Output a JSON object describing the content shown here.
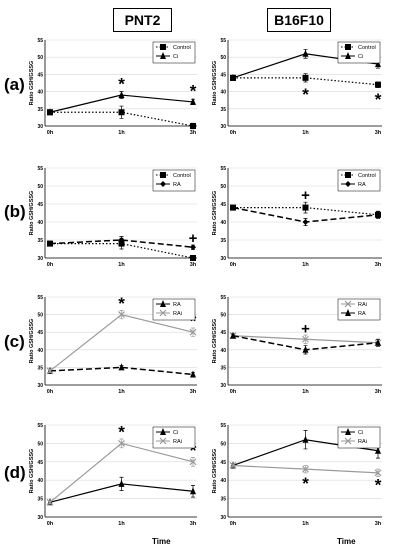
{
  "columns": [
    "PNT2",
    "B16F10"
  ],
  "rows": [
    "(a)",
    "(b)",
    "(c)",
    "(d)"
  ],
  "footer": {
    "time_label": "Time",
    "time_label2": "Time"
  },
  "colors": {
    "black": "#000000",
    "gray": "#9a9a9a"
  },
  "chart_data": [
    {
      "id": "a-left",
      "type": "line",
      "ylabel": "Ratio GSH/GSSG",
      "ylim": [
        30,
        55
      ],
      "yticks": [
        30,
        35,
        40,
        45,
        50,
        55
      ],
      "categories": [
        "0h",
        "1h",
        "3h"
      ],
      "legend": "top-right",
      "series": [
        {
          "name": "Control",
          "values": [
            34,
            34,
            30
          ],
          "errors": [
            0.7,
            1.8,
            0.8
          ],
          "style": "dotted",
          "marker": "square",
          "color": "#000000"
        },
        {
          "name": "Ci",
          "values": [
            34,
            39,
            37
          ],
          "errors": [
            0.7,
            1.0,
            0.8
          ],
          "style": "solid",
          "marker": "triangle",
          "color": "#000000"
        }
      ],
      "annotations": [
        {
          "x": "1h",
          "y": 42,
          "text": "*"
        },
        {
          "x": "3h",
          "y": 40,
          "text": "*"
        }
      ]
    },
    {
      "id": "a-right",
      "type": "line",
      "ylabel": "Ratio GSH/GSSG",
      "ylim": [
        30,
        55
      ],
      "yticks": [
        30,
        35,
        40,
        45,
        50,
        55
      ],
      "categories": [
        "0h",
        "1h",
        "3h"
      ],
      "legend": "top-right",
      "series": [
        {
          "name": "Control",
          "values": [
            44,
            44,
            42
          ],
          "errors": [
            0.6,
            1.2,
            0.8
          ],
          "style": "dotted",
          "marker": "square",
          "color": "#000000"
        },
        {
          "name": "Ci",
          "values": [
            44,
            51,
            48
          ],
          "errors": [
            0.6,
            1.3,
            1.2
          ],
          "style": "solid",
          "marker": "triangle",
          "color": "#000000"
        }
      ],
      "annotations": [
        {
          "x": "1h",
          "y": 39,
          "text": "*"
        },
        {
          "x": "3h",
          "y": 37.5,
          "text": "*"
        }
      ]
    },
    {
      "id": "b-left",
      "type": "line",
      "ylabel": "Ratio GSH/GSSG",
      "ylim": [
        30,
        55
      ],
      "yticks": [
        30,
        35,
        40,
        45,
        50,
        55
      ],
      "categories": [
        "0h",
        "1h",
        "3h"
      ],
      "legend": "top-right",
      "series": [
        {
          "name": "Control",
          "values": [
            34,
            34,
            30
          ],
          "errors": [
            0.5,
            1.5,
            0.6
          ],
          "style": "dotted",
          "marker": "square",
          "color": "#000000"
        },
        {
          "name": "RA",
          "values": [
            34,
            35,
            33
          ],
          "errors": [
            0.5,
            1.0,
            0.6
          ],
          "style": "dashed",
          "marker": "diamond",
          "color": "#000000"
        }
      ],
      "annotations": [
        {
          "x": "3h",
          "y": 35.5,
          "text": "+"
        }
      ]
    },
    {
      "id": "b-right",
      "type": "line",
      "ylabel": "Ratio GSH/GSSG",
      "ylim": [
        30,
        55
      ],
      "yticks": [
        30,
        35,
        40,
        45,
        50,
        55
      ],
      "categories": [
        "0h",
        "1h",
        "3h"
      ],
      "legend": "top-right",
      "series": [
        {
          "name": "Control",
          "values": [
            44,
            44,
            42
          ],
          "errors": [
            0.6,
            1.5,
            1.0
          ],
          "style": "dotted",
          "marker": "square",
          "color": "#000000"
        },
        {
          "name": "RA",
          "values": [
            44,
            40,
            42
          ],
          "errors": [
            0.6,
            1.0,
            0.8
          ],
          "style": "dashed",
          "marker": "diamond",
          "color": "#000000"
        }
      ],
      "annotations": [
        {
          "x": "1h",
          "y": 47.5,
          "text": "+"
        }
      ]
    },
    {
      "id": "c-left",
      "type": "line",
      "ylabel": "Ratio GSH/GSSG",
      "ylim": [
        30,
        55
      ],
      "yticks": [
        30,
        35,
        40,
        45,
        50,
        55
      ],
      "categories": [
        "0h",
        "1h",
        "3h"
      ],
      "legend": "top-right",
      "series": [
        {
          "name": "RA",
          "values": [
            34,
            35,
            33
          ],
          "errors": [
            0.5,
            0.6,
            0.6
          ],
          "style": "dashed",
          "marker": "triangle",
          "color": "#000000"
        },
        {
          "name": "RAi",
          "values": [
            34,
            50,
            45
          ],
          "errors": [
            0.5,
            1.2,
            1.2
          ],
          "style": "solid",
          "marker": "x",
          "color": "#9a9a9a"
        }
      ],
      "annotations": [
        {
          "x": "1h",
          "y": 53,
          "text": "*"
        },
        {
          "x": "3h",
          "y": 48,
          "text": "*"
        }
      ]
    },
    {
      "id": "c-right",
      "type": "line",
      "ylabel": "Ratio GSH/GSSG",
      "ylim": [
        30,
        55
      ],
      "yticks": [
        30,
        35,
        40,
        45,
        50,
        55
      ],
      "categories": [
        "0h",
        "1h",
        "3h"
      ],
      "legend": "top-right",
      "series": [
        {
          "name": "RAi",
          "values": [
            44,
            43,
            42
          ],
          "errors": [
            0.5,
            1.2,
            1.0
          ],
          "style": "solid",
          "marker": "x",
          "color": "#9a9a9a"
        },
        {
          "name": "RA",
          "values": [
            44,
            40,
            42
          ],
          "errors": [
            0.5,
            1.2,
            1.0
          ],
          "style": "dashed",
          "marker": "triangle",
          "color": "#000000"
        }
      ],
      "annotations": [
        {
          "x": "1h",
          "y": 46,
          "text": "+"
        }
      ]
    },
    {
      "id": "d-left",
      "type": "line",
      "ylabel": "Ratio GSH/GSSG",
      "ylim": [
        30,
        55
      ],
      "yticks": [
        30,
        35,
        40,
        45,
        50,
        55
      ],
      "categories": [
        "0h",
        "1h",
        "3h"
      ],
      "legend": "top-right",
      "series": [
        {
          "name": "Ci",
          "values": [
            34,
            39,
            37
          ],
          "errors": [
            0.5,
            1.8,
            1.6
          ],
          "style": "solid",
          "marker": "triangle",
          "color": "#000000"
        },
        {
          "name": "RAi",
          "values": [
            34,
            50,
            45
          ],
          "errors": [
            0.5,
            1.2,
            1.2
          ],
          "style": "solid",
          "marker": "x",
          "color": "#9a9a9a"
        }
      ],
      "annotations": [
        {
          "x": "1h",
          "y": 53,
          "text": "*"
        },
        {
          "x": "3h",
          "y": 48,
          "text": "*"
        }
      ]
    },
    {
      "id": "d-right",
      "type": "line",
      "ylabel": "Ratio GSH/GSSG",
      "ylim": [
        30,
        55
      ],
      "yticks": [
        30,
        35,
        40,
        45,
        50,
        55
      ],
      "categories": [
        "0h",
        "1h",
        "3h"
      ],
      "legend": "top-right",
      "series": [
        {
          "name": "Ci",
          "values": [
            44,
            51,
            48
          ],
          "errors": [
            0.5,
            2.5,
            2.0
          ],
          "style": "solid",
          "marker": "triangle",
          "color": "#000000"
        },
        {
          "name": "RAi",
          "values": [
            44,
            43,
            42
          ],
          "errors": [
            0.5,
            1.0,
            1.0
          ],
          "style": "solid",
          "marker": "x",
          "color": "#9a9a9a"
        }
      ],
      "annotations": [
        {
          "x": "1h",
          "y": 39,
          "text": "*"
        },
        {
          "x": "3h",
          "y": 38.5,
          "text": "*"
        }
      ]
    }
  ]
}
